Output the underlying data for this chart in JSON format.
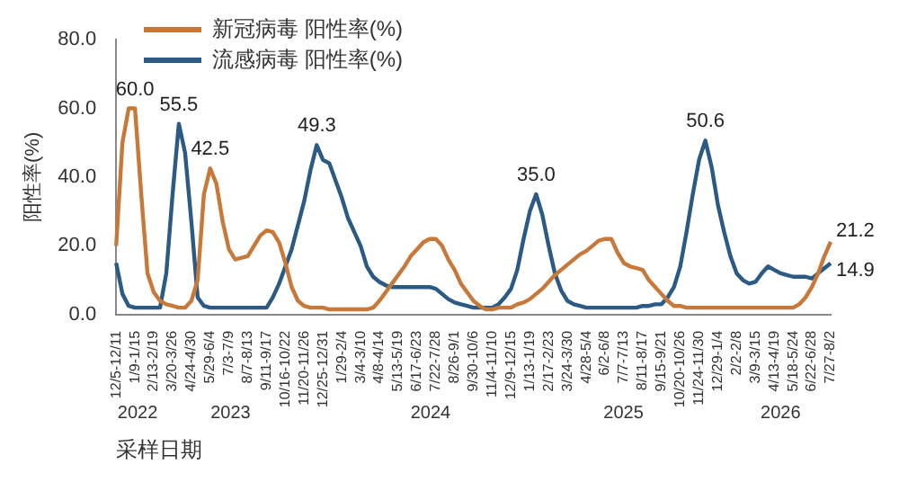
{
  "chart_data": {
    "type": "line",
    "xlabel": "采样日期",
    "ylabel": "阳性率(%)",
    "legend": "top",
    "line_style": "solid",
    "marker": "none",
    "grid": false,
    "ylim": [
      0,
      80
    ],
    "yticks": [
      {
        "value": 0,
        "label": "0.0"
      },
      {
        "value": 20,
        "label": "20.0"
      },
      {
        "value": 40,
        "label": "40.0"
      },
      {
        "value": 60,
        "label": "60.0"
      },
      {
        "value": 80,
        "label": "80.0"
      }
    ],
    "categories": [
      "12/5-12/11",
      null,
      null,
      "1/9-1/15",
      null,
      null,
      "2/13-2/19",
      null,
      null,
      "3/20-3/26",
      null,
      null,
      "4/24-4/30",
      null,
      null,
      "5/29-6/4",
      null,
      null,
      "7/3-7/9",
      null,
      null,
      "8/7-8/13",
      null,
      null,
      "9/11-9/17",
      null,
      null,
      "10/16-10/22",
      null,
      null,
      "11/20-11/26",
      null,
      null,
      "12/25-12/31",
      null,
      null,
      "1/29-2/4",
      null,
      null,
      "3/4-3/10",
      null,
      null,
      "4/8-4/14",
      null,
      null,
      "5/13-5/19",
      null,
      null,
      "6/17-6/23",
      null,
      null,
      "7/22-7/28",
      null,
      null,
      "8/26-9/1",
      null,
      null,
      "9/30-10/6",
      null,
      null,
      "11/4-11/10",
      null,
      null,
      "12/9-12/15",
      null,
      null,
      "1/13-1/19",
      null,
      null,
      "2/17-2/23",
      null,
      null,
      "3/24-3/30",
      null,
      null,
      "4/28-5/4",
      null,
      null,
      "6/2-6/8",
      null,
      null,
      "7/7-7/13",
      null,
      null,
      "8/11-8/17",
      null,
      null,
      "9/15-9/21",
      null,
      null,
      "10/20-10/26",
      null,
      null,
      "11/24-11/30",
      null,
      null,
      "12/29-1/4",
      null,
      null,
      "2/2-2/8",
      null,
      null,
      "3/9-3/15",
      null,
      null,
      "4/13-4/19",
      null,
      null,
      "5/18-5/24",
      null,
      null,
      "6/22-6/28",
      null,
      null,
      "7/27-8/2"
    ],
    "series": [
      {
        "name": "新冠病毒 阳性率(%)",
        "color": "#c8793a",
        "values": [
          20,
          50,
          60,
          60,
          35,
          12,
          6.5,
          4,
          3,
          2.5,
          2,
          2,
          4,
          10,
          35,
          42.5,
          38,
          27,
          19,
          16,
          16.5,
          17,
          20,
          23,
          24.5,
          24,
          21,
          15,
          8,
          4,
          2.5,
          2,
          2,
          2,
          1.5,
          1.5,
          1.5,
          1.5,
          1.5,
          1.5,
          1.5,
          2,
          4,
          6.5,
          9,
          11.5,
          14,
          17,
          19,
          21,
          22,
          22,
          20,
          16,
          13,
          9,
          6.5,
          4,
          2.5,
          1.5,
          1.5,
          2,
          2,
          2,
          3,
          3.5,
          4.5,
          6,
          7.5,
          9.5,
          11.5,
          13,
          14.5,
          16,
          17.5,
          18.5,
          20,
          21.5,
          22,
          22,
          18,
          15,
          14,
          13.5,
          13,
          10,
          8,
          6,
          4,
          2.5,
          2.5,
          2,
          2,
          2,
          2,
          2,
          2,
          2,
          2,
          2,
          2,
          2,
          2,
          2,
          2,
          2,
          2,
          2,
          2,
          3,
          5,
          8,
          12,
          17,
          21.2
        ],
        "value_labels": [
          null,
          null,
          null,
          "60.0",
          null,
          null,
          null,
          null,
          null,
          null,
          null,
          null,
          null,
          null,
          null,
          "42.5",
          null,
          null,
          null,
          null,
          null,
          null,
          null,
          null,
          null,
          null,
          null,
          null,
          null,
          null,
          null,
          null,
          null,
          null,
          null,
          null,
          null,
          null,
          null,
          null,
          null,
          null,
          null,
          null,
          null,
          null,
          null,
          null,
          null,
          null,
          null,
          null,
          null,
          null,
          null,
          null,
          null,
          null,
          null,
          null,
          null,
          null,
          null,
          null,
          null,
          null,
          null,
          null,
          null,
          null,
          null,
          null,
          null,
          null,
          null,
          null,
          null,
          null,
          null,
          null,
          null,
          null,
          null,
          null,
          null,
          null,
          null,
          null,
          null,
          null,
          null,
          null,
          null,
          null,
          null,
          null,
          null,
          null,
          null,
          null,
          null,
          null,
          null,
          null,
          null,
          null,
          null,
          null,
          null,
          null,
          null,
          null,
          null,
          null,
          "21.2"
        ]
      },
      {
        "name": "流感病毒 阳性率(%)",
        "color": "#2b5a85",
        "values": [
          15,
          6,
          2.5,
          2,
          2,
          2,
          2,
          2,
          12,
          35,
          55.5,
          47,
          27,
          5,
          2.5,
          2,
          2,
          2,
          2,
          2,
          2,
          2,
          2,
          2,
          2,
          5,
          9,
          14,
          19,
          26,
          33,
          42,
          49.3,
          45,
          44,
          39,
          34,
          28,
          24,
          20,
          14,
          11,
          9.5,
          8.5,
          8,
          8,
          8,
          8,
          8,
          8,
          8,
          7.5,
          6,
          4.5,
          3.5,
          3,
          2.5,
          2,
          2,
          2,
          2,
          3,
          5,
          7.5,
          13,
          22,
          30,
          35,
          29,
          20,
          12,
          7,
          4,
          3,
          2.5,
          2,
          2,
          2,
          2,
          2,
          2,
          2,
          2,
          2,
          2.5,
          2.5,
          3,
          3,
          5,
          8,
          14,
          24,
          35,
          45,
          50.6,
          43,
          32,
          24,
          17,
          12,
          10,
          9,
          9.5,
          12,
          14,
          13,
          12,
          11.5,
          11,
          11,
          11,
          10.5,
          12,
          13.5,
          14.9
        ],
        "value_labels": [
          null,
          null,
          null,
          null,
          null,
          null,
          null,
          null,
          null,
          null,
          "55.5",
          null,
          null,
          null,
          null,
          null,
          null,
          null,
          null,
          null,
          null,
          null,
          null,
          null,
          null,
          null,
          null,
          null,
          null,
          null,
          null,
          null,
          "49.3",
          null,
          null,
          null,
          null,
          null,
          null,
          null,
          null,
          null,
          null,
          null,
          null,
          null,
          null,
          null,
          null,
          null,
          null,
          null,
          null,
          null,
          null,
          null,
          null,
          null,
          null,
          null,
          null,
          null,
          null,
          null,
          null,
          null,
          null,
          "35.0",
          null,
          null,
          null,
          null,
          null,
          null,
          null,
          null,
          null,
          null,
          null,
          null,
          null,
          null,
          null,
          null,
          null,
          null,
          null,
          null,
          null,
          null,
          null,
          null,
          null,
          null,
          "50.6",
          null,
          null,
          null,
          null,
          null,
          null,
          null,
          null,
          null,
          null,
          null,
          null,
          null,
          null,
          null,
          null,
          null,
          null,
          null,
          "14.9"
        ]
      }
    ],
    "annotations": [
      "2022",
      "2023",
      "2024",
      "2025",
      "2026"
    ]
  }
}
